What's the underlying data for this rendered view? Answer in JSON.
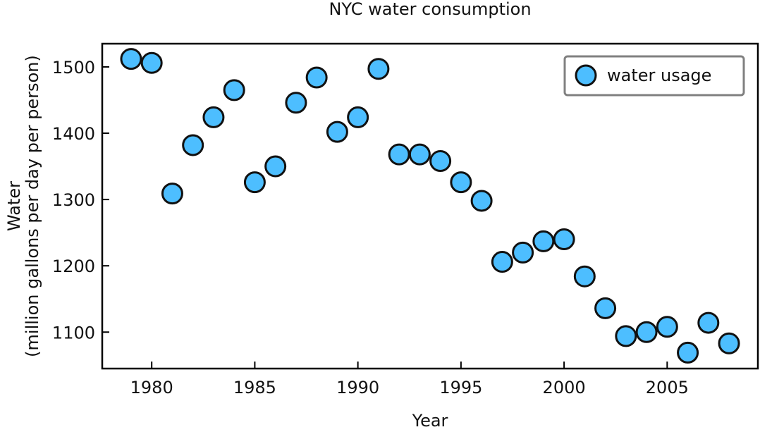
{
  "chart_data": {
    "type": "scatter",
    "title": "NYC water consumption",
    "xlabel": "Year",
    "ylabel_line1": "Water",
    "ylabel_line2": "(million gallons per day per person)",
    "xlim": [
      1977.6,
      2009.4
    ],
    "ylim": [
      1045,
      1535
    ],
    "xticks": [
      1980,
      1985,
      1990,
      1995,
      2000,
      2005
    ],
    "yticks": [
      1100,
      1200,
      1300,
      1400,
      1500
    ],
    "grid": false,
    "legend_position": "top-right",
    "series": [
      {
        "name": "water usage",
        "color": "#4dbeff",
        "edge_color": "#111111",
        "x": [
          1979,
          1980,
          1981,
          1982,
          1983,
          1984,
          1985,
          1986,
          1987,
          1988,
          1989,
          1990,
          1991,
          1992,
          1993,
          1994,
          1995,
          1996,
          1997,
          1998,
          1999,
          2000,
          2001,
          2002,
          2003,
          2004,
          2005,
          2006,
          2007,
          2008
        ],
        "y": [
          1512,
          1506,
          1309,
          1382,
          1424,
          1465,
          1326,
          1350,
          1446,
          1484,
          1402,
          1424,
          1497,
          1368,
          1368,
          1358,
          1326,
          1298,
          1206,
          1220,
          1237,
          1240,
          1184,
          1136,
          1094,
          1100,
          1108,
          1069,
          1114,
          1083
        ]
      }
    ]
  }
}
